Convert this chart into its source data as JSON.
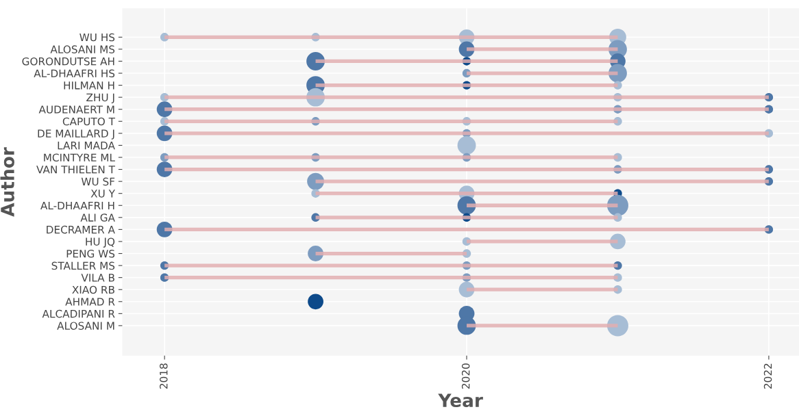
{
  "chart_data": {
    "type": "bubble",
    "orientation": "horizontal",
    "xlabel": "Year",
    "ylabel": "Author",
    "categories": [
      "WU HS",
      "ALOSANI MS",
      "GORONDUTSE AH",
      "AL-DHAAFRI HS",
      "HILMAN H",
      "ZHU J",
      "AUDENAERT M",
      "CAPUTO T",
      "DE MAILLARD J",
      "LARI MADA",
      "MCINTYRE ML",
      "VAN THIELEN T",
      "WU SF",
      "XU Y",
      "AL-DHAAFRI H",
      "ALI GA",
      "DECRAMER A",
      "HU JQ",
      "PENG WS",
      "STALLER MS",
      "VILA B",
      "XIAO RB",
      "AHMAD R",
      "ALCADIPANI R",
      "ALOSANI M"
    ],
    "xlim": [
      2017.72,
      2022.2
    ],
    "xticks": [
      2018,
      2020,
      2022
    ],
    "grid": true,
    "series": [
      {
        "type": "bar",
        "color": "#e2aeb0",
        "base": [
          2018,
          2020,
          2019,
          2020,
          2019,
          2018,
          2018,
          2018,
          2018,
          null,
          2018,
          2018,
          2019,
          2019,
          2020,
          2019,
          2018,
          2020,
          2019,
          2018,
          2018,
          2020,
          null,
          null,
          2020
        ],
        "values": [
          3,
          1,
          2,
          1,
          2,
          4,
          4,
          3,
          4,
          null,
          3,
          4,
          3,
          2,
          1,
          2,
          4,
          1,
          1,
          3,
          3,
          1,
          null,
          null,
          1
        ]
      },
      {
        "values": [
          2018,
          null,
          null,
          null,
          null,
          2018,
          2018,
          2018,
          2018,
          null,
          2018,
          2018,
          null,
          null,
          null,
          null,
          2018,
          null,
          null,
          2018,
          2018,
          null,
          null,
          null,
          null
        ],
        "sizes": [
          0.16,
          null,
          null,
          null,
          null,
          0.16,
          0.54,
          0.16,
          0.54,
          null,
          0.16,
          0.54,
          null,
          null,
          null,
          null,
          0.54,
          null,
          null,
          0.16,
          0.16,
          null,
          null,
          null,
          null
        ],
        "colors": [
          "#a7bdd5",
          null,
          null,
          null,
          null,
          "#a7bdd5",
          "#4e77a7",
          "#a7bdd5",
          "#4e77a7",
          null,
          "#7d9cc0",
          "#4e77a7",
          null,
          null,
          null,
          null,
          "#4e77a7",
          null,
          null,
          "#4e77a7",
          "#4e77a7",
          null,
          null,
          null,
          null
        ]
      },
      {
        "values": [
          2019,
          null,
          2019,
          null,
          2019,
          2019,
          null,
          2019,
          null,
          null,
          2019,
          null,
          2019,
          2019,
          null,
          2019,
          null,
          null,
          2019,
          null,
          null,
          null,
          2019,
          null,
          null
        ],
        "sizes": [
          0.16,
          null,
          0.75,
          null,
          0.75,
          0.75,
          null,
          0.16,
          null,
          null,
          0.16,
          null,
          0.64,
          0.16,
          null,
          0.16,
          null,
          null,
          0.54,
          null,
          null,
          null,
          0.54,
          null,
          null
        ],
        "colors": [
          "#a7bdd5",
          null,
          "#4e77a7",
          null,
          "#4e77a7",
          "#a7bdd5",
          null,
          "#7d9cc0",
          null,
          null,
          "#7d9cc0",
          null,
          "#7d9cc0",
          "#a7bdd5",
          null,
          "#4e77a7",
          null,
          null,
          "#7d9cc0",
          null,
          null,
          null,
          "#0d4a8a",
          null,
          null
        ]
      },
      {
        "values": [
          2020,
          2020,
          2020,
          2020,
          2020,
          null,
          null,
          2020,
          2020,
          2020,
          2020,
          null,
          null,
          2020,
          2020,
          2020,
          null,
          2020,
          2020,
          2020,
          2020,
          2020,
          null,
          2020,
          2020
        ],
        "sizes": [
          0.54,
          0.54,
          0.16,
          0.16,
          0.16,
          null,
          null,
          0.16,
          0.16,
          0.75,
          0.16,
          null,
          null,
          0.54,
          0.75,
          0.16,
          null,
          0.16,
          0.16,
          0.16,
          0.16,
          0.54,
          null,
          0.54,
          0.75
        ],
        "colors": [
          "#a7bdd5",
          "#4e77a7",
          "#0d4a8a",
          "#7d9cc0",
          "#0d4a8a",
          null,
          null,
          "#a7bdd5",
          "#7d9cc0",
          "#a7bdd5",
          "#7d9cc0",
          null,
          null,
          "#a7bdd5",
          "#4e77a7",
          "#0d4a8a",
          null,
          "#a7bdd5",
          "#a7bdd5",
          "#7d9cc0",
          "#7d9cc0",
          "#a7bdd5",
          null,
          "#4e77a7",
          "#4e77a7"
        ]
      },
      {
        "values": [
          2021,
          2021,
          2021,
          2021,
          2021,
          2021,
          2021,
          2021,
          null,
          null,
          2021,
          2021,
          null,
          2021,
          2021,
          2021,
          null,
          2021,
          null,
          2021,
          2021,
          2021,
          null,
          null,
          2021
        ],
        "sizes": [
          0.64,
          0.75,
          0.54,
          0.75,
          0.16,
          0.16,
          0.16,
          0.16,
          null,
          null,
          0.16,
          0.16,
          null,
          0.16,
          1,
          0.16,
          null,
          0.54,
          null,
          0.16,
          0.16,
          0.16,
          null,
          null,
          1
        ],
        "colors": [
          "#a7bdd5",
          "#7d9cc0",
          "#4e77a7",
          "#7d9cc0",
          "#a7bdd5",
          "#a7bdd5",
          "#7d9cc0",
          "#a7bdd5",
          null,
          null,
          "#a7bdd5",
          "#7d9cc0",
          null,
          "#0d4a8a",
          "#7d9cc0",
          "#a7bdd5",
          null,
          "#a7bdd5",
          null,
          "#4e77a7",
          "#a7bdd5",
          "#a7bdd5",
          null,
          null,
          "#a7bdd5"
        ]
      },
      {
        "values": [
          null,
          null,
          null,
          null,
          null,
          2022,
          2022,
          null,
          2022,
          null,
          null,
          2022,
          2022,
          null,
          null,
          null,
          2022,
          null,
          null,
          null,
          null,
          null,
          null,
          null,
          null
        ],
        "sizes": [
          null,
          null,
          null,
          null,
          null,
          0.16,
          0.16,
          null,
          0.16,
          null,
          null,
          0.16,
          0.16,
          null,
          null,
          null,
          0.16,
          null,
          null,
          null,
          null,
          null,
          null,
          null,
          null
        ],
        "colors": [
          null,
          null,
          null,
          null,
          null,
          "#4e77a7",
          "#4e77a7",
          null,
          "#a7bdd5",
          null,
          null,
          "#4e77a7",
          "#4e77a7",
          null,
          null,
          null,
          "#4e77a7",
          null,
          null,
          null,
          null,
          null,
          null,
          null,
          null
        ]
      }
    ]
  }
}
